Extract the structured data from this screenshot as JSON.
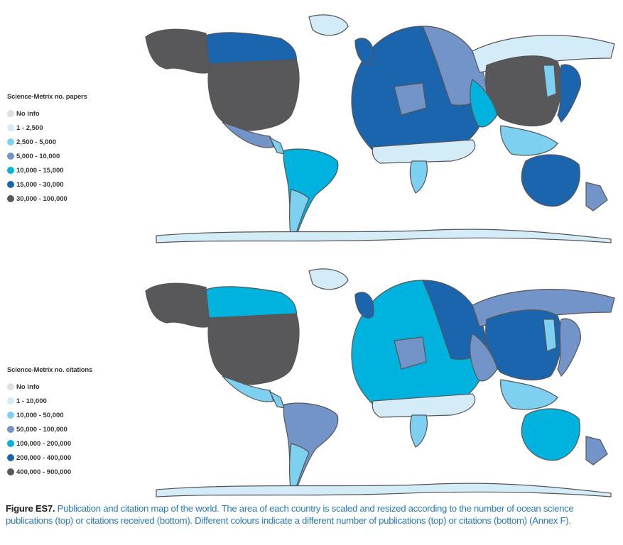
{
  "colors": {
    "no_info": "#e0e0e0",
    "c1": "#d3ecf7",
    "c2": "#7dd0ef",
    "c3": "#7394c9",
    "c4": "#00b3df",
    "c5": "#1b65ae",
    "c6": "#58585a",
    "border": "#555555"
  },
  "top_legend": {
    "title": "Science-Metrix no. papers",
    "items": [
      {
        "label": "No info",
        "color": "#e0e0e0"
      },
      {
        "label": "1 - 2,500",
        "color": "#d3ecf7"
      },
      {
        "label": "2,500 - 5,000",
        "color": "#7dd0ef"
      },
      {
        "label": "5,000 - 10,000",
        "color": "#7394c9"
      },
      {
        "label": "10,000 - 15,000",
        "color": "#00b3df"
      },
      {
        "label": "15,000 - 30,000",
        "color": "#1b65ae"
      },
      {
        "label": "30,000 - 100,000",
        "color": "#58585a"
      }
    ]
  },
  "bottom_legend": {
    "title": "Science-Metrix no. citations",
    "items": [
      {
        "label": "No info",
        "color": "#e0e0e0"
      },
      {
        "label": "1 - 10,000",
        "color": "#d3ecf7"
      },
      {
        "label": "10,000 - 50,000",
        "color": "#7dd0ef"
      },
      {
        "label": "50,000 - 100,000",
        "color": "#7394c9"
      },
      {
        "label": "100,000 - 200,000",
        "color": "#00b3df"
      },
      {
        "label": "200,000 - 400,000",
        "color": "#1b65ae"
      },
      {
        "label": "400,000 - 900,000",
        "color": "#58585a"
      }
    ]
  },
  "caption": {
    "label": "Figure ES7.",
    "text": " Publication and citation map of the world. The area of each country is scaled and resized according to the number of ocean science publications (top) or citations received (bottom). Different colours indicate a different number of publications (top) or citations (bottom) (Annex F)."
  }
}
